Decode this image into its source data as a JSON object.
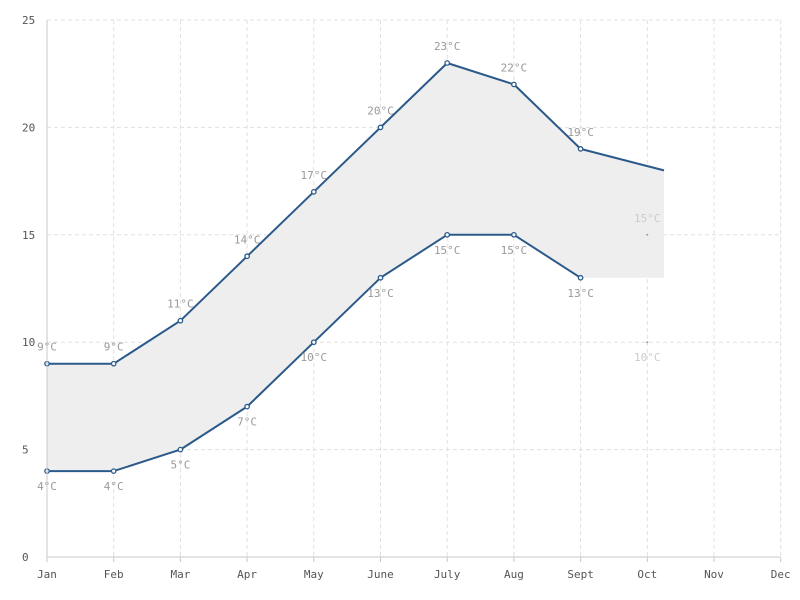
{
  "chart_data": {
    "type": "area",
    "categories": [
      "Jan",
      "Feb",
      "Mar",
      "Apr",
      "May",
      "June",
      "July",
      "Aug",
      "Sept",
      "Oct",
      "Nov",
      "Dec"
    ],
    "series": [
      {
        "values": [
          9,
          9,
          11,
          14,
          17,
          20,
          23,
          22,
          19,
          15,
          null,
          null
        ],
        "labels": [
          "9°C",
          "9°C",
          "11°C",
          "14°C",
          "17°C",
          "20°C",
          "23°C",
          "22°C",
          "19°C",
          "15°C",
          "",
          ""
        ]
      },
      {
        "values": [
          4,
          4,
          5,
          7,
          10,
          13,
          15,
          15,
          13,
          10,
          null,
          null
        ],
        "labels": [
          "4°C",
          "4°C",
          "5°C",
          "7°C",
          "10°C",
          "13°C",
          "15°C",
          "15°C",
          "13°C",
          "10°C",
          "",
          ""
        ]
      }
    ],
    "line_end_x": 9.25,
    "line_end_upper_value": 18,
    "faded_categories": [
      "Oct"
    ],
    "title": "",
    "xlabel": "",
    "ylabel": "",
    "ylim": [
      0,
      25
    ],
    "yticks": [
      "0",
      "5",
      "10",
      "15",
      "20",
      "25"
    ],
    "grid": true,
    "legend": "none",
    "colors": {
      "line": "#2b5a8a",
      "band": "#eeeeee",
      "label": "#999999",
      "label_faded": "#cccccc",
      "grid": "#e0e0e0"
    }
  }
}
